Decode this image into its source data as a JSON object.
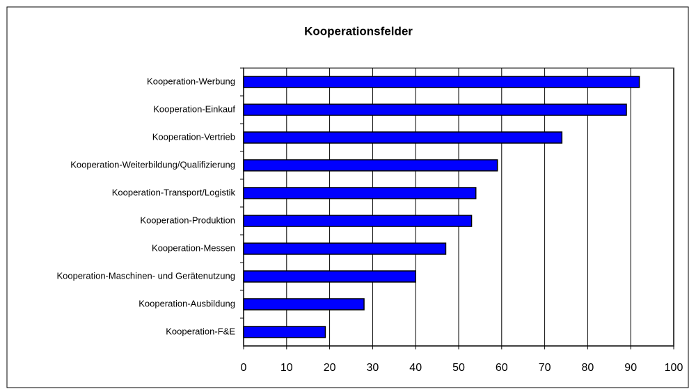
{
  "chart_data": {
    "type": "barh",
    "title": "Kooperationsfelder",
    "categories": [
      "Kooperation-Werbung",
      "Kooperation-Einkauf",
      "Kooperation-Vertrieb",
      "Kooperation-Weiterbildung/Qualifizierung",
      "Kooperation-Transport/Logistik",
      "Kooperation-Produktion",
      "Kooperation-Messen",
      "Kooperation-Maschinen- und Gerätenutzung",
      "Kooperation-Ausbildung",
      "Kooperation-F&E"
    ],
    "values": [
      92,
      89,
      74,
      59,
      54,
      53,
      47,
      40,
      28,
      19
    ],
    "color": "#0000ff",
    "xlim": [
      0,
      100
    ],
    "xticks": [
      0,
      10,
      20,
      30,
      40,
      50,
      60,
      70,
      80,
      90,
      100
    ],
    "grid": true
  }
}
